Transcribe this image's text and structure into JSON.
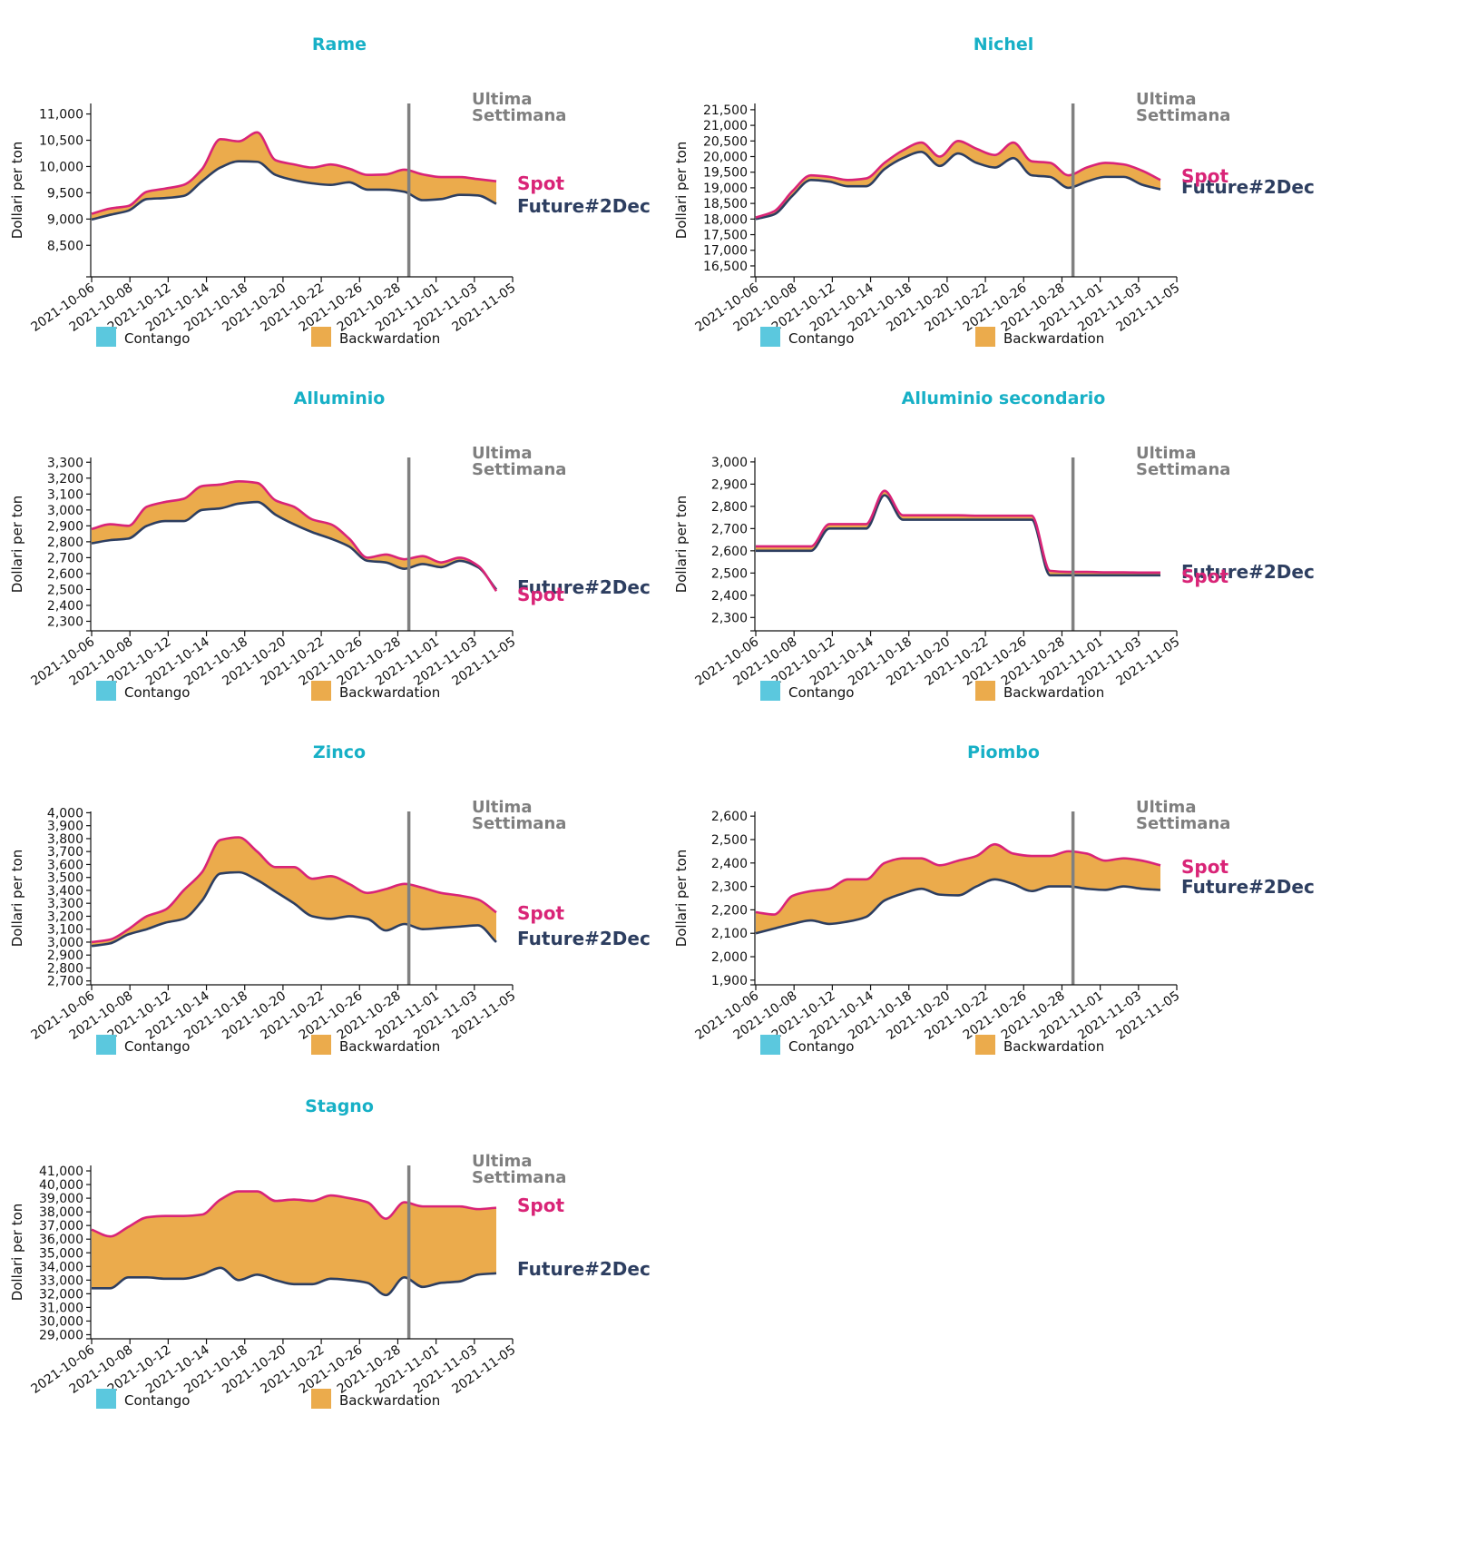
{
  "legend": {
    "contango": "Contango",
    "backwardation": "Backwardation"
  },
  "annotations": {
    "last_week": [
      "Ultima",
      "Settimana"
    ],
    "spot": "Spot",
    "future": "Future#2Dec"
  },
  "colors": {
    "title": "#17b0c6",
    "spot": "#d92477",
    "future": "#2d3e60",
    "contango": "#5bc8de",
    "backwardation": "#ebab4c",
    "marker": "#808080"
  },
  "chart_data": [
    {
      "type": "area",
      "title": "Rame",
      "ylabel": "Dollari per ton",
      "x": [
        "2021-10-06",
        "2021-10-07",
        "2021-10-08",
        "2021-10-11",
        "2021-10-12",
        "2021-10-13",
        "2021-10-14",
        "2021-10-15",
        "2021-10-18",
        "2021-10-19",
        "2021-10-20",
        "2021-10-21",
        "2021-10-22",
        "2021-10-25",
        "2021-10-26",
        "2021-10-27",
        "2021-10-28",
        "2021-10-29",
        "2021-11-01",
        "2021-11-02",
        "2021-11-03",
        "2021-11-04",
        "2021-11-05"
      ],
      "xticks": [
        "2021-10-06",
        "2021-10-08",
        "2021-10-12",
        "2021-10-14",
        "2021-10-18",
        "2021-10-20",
        "2021-10-22",
        "2021-10-26",
        "2021-10-28",
        "2021-11-01",
        "2021-11-03",
        "2021-11-05"
      ],
      "marker_x": "2021-10-29",
      "yticks": [
        8500,
        9000,
        9500,
        10000,
        10500,
        11000
      ],
      "ylim": [
        7900,
        11200
      ],
      "series": [
        {
          "name": "Spot",
          "values": [
            9100,
            9200,
            9250,
            9520,
            9580,
            9650,
            9950,
            10520,
            10480,
            10650,
            10120,
            10040,
            9980,
            10040,
            9960,
            9840,
            9850,
            9940,
            9850,
            9800,
            9800,
            9760,
            9720
          ]
        },
        {
          "name": "Future#2Dec",
          "values": [
            8990,
            9080,
            9160,
            9380,
            9400,
            9440,
            9720,
            9980,
            10100,
            10090,
            9840,
            9740,
            9680,
            9650,
            9700,
            9560,
            9560,
            9520,
            9360,
            9380,
            9460,
            9450,
            9290
          ]
        }
      ]
    },
    {
      "type": "area",
      "title": "Nichel",
      "ylabel": "Dollari per ton",
      "x": [
        "2021-10-06",
        "2021-10-07",
        "2021-10-08",
        "2021-10-11",
        "2021-10-12",
        "2021-10-13",
        "2021-10-14",
        "2021-10-15",
        "2021-10-18",
        "2021-10-19",
        "2021-10-20",
        "2021-10-21",
        "2021-10-22",
        "2021-10-25",
        "2021-10-26",
        "2021-10-27",
        "2021-10-28",
        "2021-10-29",
        "2021-11-01",
        "2021-11-02",
        "2021-11-03",
        "2021-11-04",
        "2021-11-05"
      ],
      "xticks": [
        "2021-10-06",
        "2021-10-08",
        "2021-10-12",
        "2021-10-14",
        "2021-10-18",
        "2021-10-20",
        "2021-10-22",
        "2021-10-26",
        "2021-10-28",
        "2021-11-01",
        "2021-11-03",
        "2021-11-05"
      ],
      "marker_x": "2021-10-29",
      "yticks": [
        16500,
        17000,
        17500,
        18000,
        18500,
        19000,
        19500,
        20000,
        20500,
        21000,
        21500
      ],
      "ylim": [
        16150,
        21700
      ],
      "series": [
        {
          "name": "Spot",
          "values": [
            18050,
            18250,
            18900,
            19400,
            19350,
            19250,
            19300,
            19800,
            20200,
            20450,
            20000,
            20500,
            20250,
            20050,
            20450,
            19850,
            19800,
            19400,
            19650,
            19800,
            19750,
            19550,
            19250
          ]
        },
        {
          "name": "Future#2Dec",
          "values": [
            18000,
            18150,
            18750,
            19250,
            19200,
            19050,
            19050,
            19600,
            19950,
            20150,
            19700,
            20100,
            19800,
            19650,
            19950,
            19400,
            19350,
            19000,
            19200,
            19350,
            19350,
            19100,
            18950
          ]
        }
      ]
    },
    {
      "type": "area",
      "title": "Alluminio",
      "ylabel": "Dollari per ton",
      "x": [
        "2021-10-06",
        "2021-10-07",
        "2021-10-08",
        "2021-10-11",
        "2021-10-12",
        "2021-10-13",
        "2021-10-14",
        "2021-10-15",
        "2021-10-18",
        "2021-10-19",
        "2021-10-20",
        "2021-10-21",
        "2021-10-22",
        "2021-10-25",
        "2021-10-26",
        "2021-10-27",
        "2021-10-28",
        "2021-10-29",
        "2021-11-01",
        "2021-11-02",
        "2021-11-03",
        "2021-11-04",
        "2021-11-05"
      ],
      "xticks": [
        "2021-10-06",
        "2021-10-08",
        "2021-10-12",
        "2021-10-14",
        "2021-10-18",
        "2021-10-20",
        "2021-10-22",
        "2021-10-26",
        "2021-10-28",
        "2021-11-01",
        "2021-11-03",
        "2021-11-05"
      ],
      "marker_x": "2021-10-29",
      "yticks": [
        2300,
        2400,
        2500,
        2600,
        2700,
        2800,
        2900,
        3000,
        3100,
        3200,
        3300
      ],
      "ylim": [
        2240,
        3330
      ],
      "series": [
        {
          "name": "Spot",
          "values": [
            2880,
            2910,
            2900,
            3020,
            3050,
            3070,
            3150,
            3160,
            3180,
            3170,
            3060,
            3020,
            2940,
            2910,
            2820,
            2700,
            2720,
            2690,
            2710,
            2670,
            2700,
            2650,
            2490
          ]
        },
        {
          "name": "Future#2Dec",
          "values": [
            2790,
            2810,
            2820,
            2900,
            2930,
            2930,
            3000,
            3010,
            3040,
            3050,
            2970,
            2910,
            2860,
            2820,
            2770,
            2680,
            2670,
            2630,
            2660,
            2640,
            2680,
            2640,
            2500
          ]
        }
      ]
    },
    {
      "type": "area",
      "title": "Alluminio secondario",
      "ylabel": "Dollari per ton",
      "x": [
        "2021-10-06",
        "2021-10-07",
        "2021-10-08",
        "2021-10-11",
        "2021-10-12",
        "2021-10-13",
        "2021-10-14",
        "2021-10-15",
        "2021-10-18",
        "2021-10-19",
        "2021-10-20",
        "2021-10-21",
        "2021-10-22",
        "2021-10-25",
        "2021-10-26",
        "2021-10-27",
        "2021-10-28",
        "2021-10-29",
        "2021-11-01",
        "2021-11-02",
        "2021-11-03",
        "2021-11-04",
        "2021-11-05"
      ],
      "xticks": [
        "2021-10-06",
        "2021-10-08",
        "2021-10-12",
        "2021-10-14",
        "2021-10-18",
        "2021-10-20",
        "2021-10-22",
        "2021-10-26",
        "2021-10-28",
        "2021-11-01",
        "2021-11-03",
        "2021-11-05"
      ],
      "marker_x": "2021-10-29",
      "yticks": [
        2300,
        2400,
        2500,
        2600,
        2700,
        2800,
        2900,
        3000
      ],
      "ylim": [
        2240,
        3020
      ],
      "series": [
        {
          "name": "Spot",
          "values": [
            2620,
            2620,
            2620,
            2620,
            2720,
            2720,
            2720,
            2870,
            2760,
            2760,
            2760,
            2760,
            2758,
            2758,
            2758,
            2758,
            2510,
            2505,
            2505,
            2503,
            2503,
            2502,
            2502
          ]
        },
        {
          "name": "Future#2Dec",
          "values": [
            2600,
            2600,
            2600,
            2600,
            2700,
            2700,
            2700,
            2850,
            2740,
            2740,
            2740,
            2740,
            2740,
            2740,
            2740,
            2740,
            2490,
            2490,
            2490,
            2490,
            2490,
            2490,
            2490
          ]
        }
      ]
    },
    {
      "type": "area",
      "title": "Zinco",
      "ylabel": "Dollari per ton",
      "x": [
        "2021-10-06",
        "2021-10-07",
        "2021-10-08",
        "2021-10-11",
        "2021-10-12",
        "2021-10-13",
        "2021-10-14",
        "2021-10-15",
        "2021-10-18",
        "2021-10-19",
        "2021-10-20",
        "2021-10-21",
        "2021-10-22",
        "2021-10-25",
        "2021-10-26",
        "2021-10-27",
        "2021-10-28",
        "2021-10-29",
        "2021-11-01",
        "2021-11-02",
        "2021-11-03",
        "2021-11-04",
        "2021-11-05"
      ],
      "xticks": [
        "2021-10-06",
        "2021-10-08",
        "2021-10-12",
        "2021-10-14",
        "2021-10-18",
        "2021-10-20",
        "2021-10-22",
        "2021-10-26",
        "2021-10-28",
        "2021-11-01",
        "2021-11-03",
        "2021-11-05"
      ],
      "marker_x": "2021-10-29",
      "yticks": [
        2700,
        2800,
        2900,
        3000,
        3100,
        3200,
        3300,
        3400,
        3500,
        3600,
        3700,
        3800,
        3900,
        4000
      ],
      "ylim": [
        2670,
        4010
      ],
      "series": [
        {
          "name": "Spot",
          "values": [
            3000,
            3020,
            3100,
            3200,
            3250,
            3400,
            3540,
            3790,
            3810,
            3700,
            3580,
            3580,
            3490,
            3510,
            3450,
            3380,
            3410,
            3450,
            3420,
            3380,
            3360,
            3330,
            3230
          ]
        },
        {
          "name": "Future#2Dec",
          "values": [
            2970,
            2990,
            3060,
            3100,
            3150,
            3180,
            3320,
            3530,
            3540,
            3480,
            3390,
            3300,
            3200,
            3180,
            3200,
            3180,
            3090,
            3140,
            3100,
            3110,
            3120,
            3130,
            3000
          ]
        }
      ]
    },
    {
      "type": "area",
      "title": "Piombo",
      "ylabel": "Dollari per ton",
      "x": [
        "2021-10-06",
        "2021-10-07",
        "2021-10-08",
        "2021-10-11",
        "2021-10-12",
        "2021-10-13",
        "2021-10-14",
        "2021-10-15",
        "2021-10-18",
        "2021-10-19",
        "2021-10-20",
        "2021-10-21",
        "2021-10-22",
        "2021-10-25",
        "2021-10-26",
        "2021-10-27",
        "2021-10-28",
        "2021-10-29",
        "2021-11-01",
        "2021-11-02",
        "2021-11-03",
        "2021-11-04",
        "2021-11-05"
      ],
      "xticks": [
        "2021-10-06",
        "2021-10-08",
        "2021-10-12",
        "2021-10-14",
        "2021-10-18",
        "2021-10-20",
        "2021-10-22",
        "2021-10-26",
        "2021-10-28",
        "2021-11-01",
        "2021-11-03",
        "2021-11-05"
      ],
      "marker_x": "2021-10-29",
      "yticks": [
        1900,
        2000,
        2100,
        2200,
        2300,
        2400,
        2500,
        2600
      ],
      "ylim": [
        1880,
        2620
      ],
      "series": [
        {
          "name": "Spot",
          "values": [
            2190,
            2180,
            2260,
            2280,
            2290,
            2330,
            2330,
            2400,
            2420,
            2420,
            2390,
            2410,
            2430,
            2480,
            2440,
            2430,
            2430,
            2450,
            2440,
            2410,
            2420,
            2410,
            2390
          ]
        },
        {
          "name": "Future#2Dec",
          "values": [
            2100,
            2120,
            2140,
            2155,
            2140,
            2150,
            2170,
            2240,
            2270,
            2290,
            2265,
            2262,
            2300,
            2330,
            2310,
            2280,
            2300,
            2300,
            2290,
            2285,
            2300,
            2290,
            2285
          ]
        }
      ]
    },
    {
      "type": "area",
      "title": "Stagno",
      "ylabel": "Dollari per ton",
      "x": [
        "2021-10-06",
        "2021-10-07",
        "2021-10-08",
        "2021-10-11",
        "2021-10-12",
        "2021-10-13",
        "2021-10-14",
        "2021-10-15",
        "2021-10-18",
        "2021-10-19",
        "2021-10-20",
        "2021-10-21",
        "2021-10-22",
        "2021-10-25",
        "2021-10-26",
        "2021-10-27",
        "2021-10-28",
        "2021-10-29",
        "2021-11-01",
        "2021-11-02",
        "2021-11-03",
        "2021-11-04",
        "2021-11-05"
      ],
      "xticks": [
        "2021-10-06",
        "2021-10-08",
        "2021-10-12",
        "2021-10-14",
        "2021-10-18",
        "2021-10-20",
        "2021-10-22",
        "2021-10-26",
        "2021-10-28",
        "2021-11-01",
        "2021-11-03",
        "2021-11-05"
      ],
      "marker_x": "2021-10-29",
      "yticks": [
        29000,
        30000,
        31000,
        32000,
        33000,
        34000,
        35000,
        36000,
        37000,
        38000,
        39000,
        40000,
        41000
      ],
      "ylim": [
        28700,
        41400
      ],
      "series": [
        {
          "name": "Spot",
          "values": [
            36700,
            36200,
            36900,
            37600,
            37700,
            37700,
            37800,
            38900,
            39500,
            39500,
            38800,
            38900,
            38800,
            39200,
            39000,
            38700,
            37500,
            38700,
            38400,
            38400,
            38400,
            38200,
            38300
          ]
        },
        {
          "name": "Future#2Dec",
          "values": [
            32400,
            32400,
            33200,
            33200,
            33100,
            33100,
            33400,
            33900,
            33000,
            33400,
            33000,
            32700,
            32700,
            33100,
            33000,
            32800,
            31900,
            33200,
            32500,
            32800,
            32900,
            33400,
            33500
          ]
        }
      ]
    }
  ]
}
